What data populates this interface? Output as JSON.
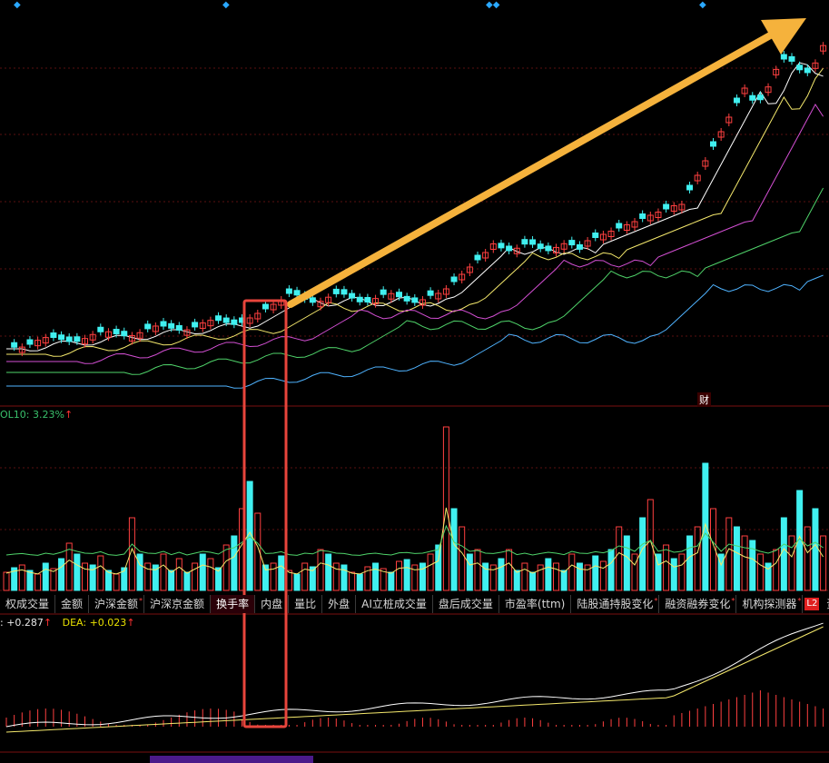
{
  "vol_indicator": {
    "label": "OL10: 3.23%",
    "arrow": "↑"
  },
  "macd_indicator": {
    "dif_label": ": +0.287",
    "dif_arrow": "↑",
    "dea_label": "DEA: +0.023",
    "dea_arrow": "↑"
  },
  "tabs": [
    {
      "label": "权成交量",
      "active": false,
      "star": false
    },
    {
      "label": "金额",
      "active": false,
      "star": false
    },
    {
      "label": "沪深金额",
      "active": false,
      "star": true
    },
    {
      "label": "沪深京金额",
      "active": false,
      "star": false
    },
    {
      "label": "换手率",
      "active": true,
      "star": false
    },
    {
      "label": "内盘",
      "active": false,
      "star": false
    },
    {
      "label": "量比",
      "active": false,
      "star": false
    },
    {
      "label": "外盘",
      "active": false,
      "star": false
    },
    {
      "label": "AI立桩成交量",
      "active": false,
      "star": false
    },
    {
      "label": "盘后成交量",
      "active": false,
      "star": false
    },
    {
      "label": "市盈率(ttm)",
      "active": false,
      "star": false
    },
    {
      "label": "陆股通持股变化",
      "active": false,
      "star": true
    },
    {
      "label": "融资融券变化",
      "active": false,
      "star": true
    },
    {
      "label": "机构探测器",
      "active": false,
      "star": true
    }
  ],
  "l2_badge": "L2",
  "tail_tab": "资",
  "finance_marker": "财",
  "colors": {
    "up": "#ff4040",
    "down": "#40f0f0",
    "arrow": "#f5b23c",
    "highlight_box": "#e8453c",
    "ma5": "#ffffff",
    "ma10": "#f4e86c",
    "ma20": "#d34fd3",
    "ma30": "#4fd36a",
    "ma60": "#4fb3ff"
  },
  "chart_data": {
    "type": "candlestick",
    "trend_annotation": "upward-arrow",
    "highlight": "volume-spike-region"
  }
}
